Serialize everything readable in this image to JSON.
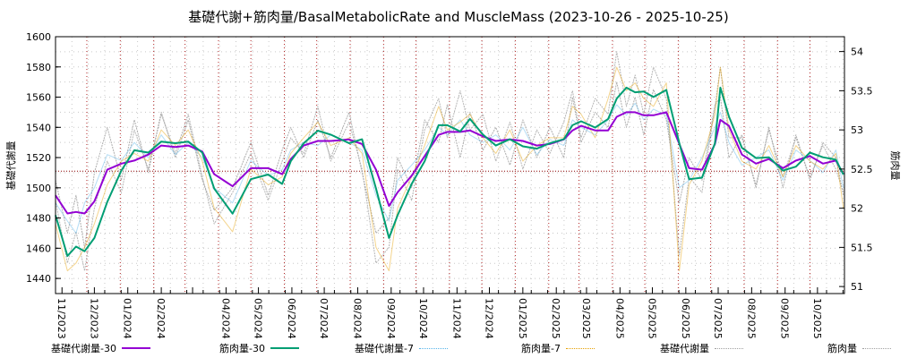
{
  "chart_data": {
    "type": "line",
    "title": "基礎代謝+筋肉量/BasalMetabolicRate and MuscleMass (2023-10-26 - 2025-10-25)",
    "start_date": "2023-10-26",
    "end_date": "2025-10-25",
    "ylabel": "基礎代謝量",
    "y2label": "筋肉量",
    "ylim": [
      1430,
      1600
    ],
    "y2lim": [
      50.91,
      54.19
    ],
    "yticks": [
      1440,
      1460,
      1480,
      1500,
      1520,
      1540,
      1560,
      1580,
      1600
    ],
    "y2ticks": [
      51,
      51.5,
      52,
      52.5,
      53,
      53.5,
      54
    ],
    "reference_line": 1511,
    "xticks": [
      "11/2023",
      "12/2023",
      "01/2024",
      "02/2024",
      "04/2024",
      "05/2024",
      "06/2024",
      "07/2024",
      "08/2024",
      "09/2024",
      "10/2024",
      "11/2024",
      "12/2024",
      "01/2025",
      "02/2025",
      "03/2025",
      "04/2025",
      "05/2025",
      "06/2025",
      "07/2025",
      "08/2025",
      "09/2025",
      "10/2025"
    ],
    "grid": true,
    "legend_position": "bottom",
    "x_days": [
      0,
      11,
      19,
      27,
      36,
      48,
      61,
      73,
      86,
      98,
      111,
      123,
      136,
      147,
      164,
      181,
      197,
      210,
      218,
      230,
      243,
      255,
      272,
      284,
      297,
      309,
      317,
      330,
      342,
      355,
      363,
      375,
      384,
      396,
      408,
      421,
      433,
      446,
      458,
      471,
      479,
      487,
      500,
      512,
      520,
      529,
      537,
      545,
      554,
      566,
      578,
      587,
      599,
      611,
      616,
      624,
      636,
      649,
      661,
      674,
      686,
      699,
      711,
      723,
      730
    ],
    "series": [
      {
        "name": "基礎代謝量",
        "axis": "left",
        "color": "#a0a0a0",
        "style": "raw",
        "values": [
          1505,
          1470,
          1495,
          1460,
          1510,
          1540,
          1505,
          1545,
          1510,
          1550,
          1520,
          1545,
          1505,
          1485,
          1500,
          1530,
          1495,
          1525,
          1540,
          1520,
          1545,
          1520,
          1550,
          1510,
          1470,
          1480,
          1520,
          1500,
          1545,
          1530,
          1555,
          1520,
          1550,
          1525,
          1540,
          1515,
          1545,
          1520,
          1540,
          1520,
          1560,
          1530,
          1550,
          1540,
          1570,
          1540,
          1560,
          1535,
          1565,
          1545,
          1490,
          1520,
          1505,
          1555,
          1560,
          1520,
          1535,
          1500,
          1540,
          1500,
          1535,
          1505,
          1530,
          1520,
          1495
        ]
      },
      {
        "name": "筋肉量",
        "axis": "right",
        "color": "#a8a8a8",
        "style": "raw",
        "values": [
          52.1,
          51.3,
          51.7,
          51.2,
          52.0,
          52.6,
          52.2,
          53.0,
          52.5,
          53.2,
          52.7,
          53.2,
          52.4,
          51.8,
          52.2,
          52.7,
          52.1,
          52.6,
          52.9,
          52.7,
          53.3,
          52.6,
          53.1,
          52.5,
          51.3,
          51.5,
          52.5,
          52.1,
          53.0,
          53.4,
          52.9,
          53.5,
          53.0,
          53.2,
          52.6,
          53.1,
          52.5,
          53.0,
          52.7,
          53.1,
          53.5,
          52.9,
          53.4,
          53.2,
          54.0,
          53.3,
          53.7,
          53.2,
          53.8,
          53.4,
          51.4,
          52.4,
          52.2,
          53.3,
          53.8,
          52.9,
          52.9,
          52.3,
          53.0,
          52.4,
          52.9,
          52.4,
          52.8,
          52.5,
          52.2
        ]
      },
      {
        "name": "基礎代謝量-7",
        "axis": "left",
        "color": "#56b4e9",
        "style": "ma7",
        "values": [
          1490,
          1478,
          1470,
          1490,
          1500,
          1522,
          1518,
          1530,
          1520,
          1535,
          1522,
          1530,
          1520,
          1500,
          1490,
          1518,
          1508,
          1512,
          1525,
          1530,
          1528,
          1535,
          1530,
          1525,
          1495,
          1478,
          1505,
          1515,
          1525,
          1540,
          1535,
          1545,
          1535,
          1530,
          1535,
          1525,
          1540,
          1522,
          1532,
          1528,
          1545,
          1540,
          1535,
          1545,
          1555,
          1548,
          1556,
          1545,
          1552,
          1548,
          1500,
          1505,
          1520,
          1540,
          1550,
          1530,
          1515,
          1520,
          1525,
          1505,
          1525,
          1518,
          1510,
          1525,
          1500
        ]
      },
      {
        "name": "筋肉量-7",
        "axis": "right",
        "color": "#e69f00",
        "style": "ma7",
        "values": [
          51.8,
          51.2,
          51.3,
          51.5,
          51.8,
          52.3,
          52.6,
          52.7,
          52.6,
          53.0,
          52.8,
          53.0,
          52.6,
          52.0,
          51.7,
          52.5,
          52.3,
          52.4,
          52.7,
          52.9,
          53.1,
          52.8,
          52.9,
          52.7,
          51.5,
          51.2,
          52.0,
          52.4,
          52.8,
          53.3,
          53.0,
          53.1,
          53.2,
          52.9,
          52.7,
          53.0,
          52.6,
          52.8,
          52.9,
          52.9,
          53.3,
          53.2,
          52.9,
          53.4,
          53.8,
          53.5,
          53.6,
          53.4,
          53.3,
          53.6,
          51.2,
          52.3,
          52.6,
          53.2,
          53.8,
          53.0,
          52.6,
          52.5,
          52.8,
          52.4,
          52.8,
          52.6,
          52.5,
          52.7,
          52.0
        ]
      },
      {
        "name": "基礎代謝量-30",
        "axis": "left",
        "color": "#9400d3",
        "style": "ma30",
        "values": [
          1495,
          1483,
          1484,
          1483,
          1491,
          1512,
          1516,
          1518,
          1522,
          1528,
          1527,
          1528,
          1524,
          1509,
          1501,
          1513,
          1513,
          1509,
          1519,
          1528,
          1531,
          1531,
          1532,
          1529,
          1512,
          1488,
          1497,
          1508,
          1521,
          1535,
          1537,
          1537,
          1538,
          1534,
          1531,
          1532,
          1531,
          1528,
          1529,
          1532,
          1538,
          1541,
          1538,
          1538,
          1547,
          1550,
          1550,
          1548,
          1548,
          1550,
          1529,
          1513,
          1512,
          1529,
          1545,
          1541,
          1522,
          1516,
          1519,
          1513,
          1518,
          1521,
          1516,
          1518,
          1509
        ]
      },
      {
        "name": "筋肉量-30",
        "axis": "right",
        "color": "#009e73",
        "style": "ma30",
        "values": [
          51.91,
          51.39,
          51.51,
          51.45,
          51.62,
          52.08,
          52.48,
          52.74,
          52.71,
          52.85,
          52.83,
          52.85,
          52.71,
          52.25,
          51.93,
          52.37,
          52.43,
          52.31,
          52.6,
          52.83,
          52.99,
          52.94,
          52.83,
          52.88,
          52.25,
          51.62,
          51.91,
          52.31,
          52.6,
          53.06,
          53.06,
          52.98,
          53.14,
          52.94,
          52.8,
          52.88,
          52.79,
          52.76,
          52.83,
          52.88,
          53.06,
          53.11,
          53.03,
          53.14,
          53.4,
          53.54,
          53.48,
          53.49,
          53.42,
          53.51,
          52.83,
          52.37,
          52.39,
          52.83,
          53.54,
          53.17,
          52.77,
          52.64,
          52.65,
          52.48,
          52.53,
          52.71,
          52.65,
          52.62,
          52.43
        ]
      }
    ],
    "legend": [
      "基礎代謝量-30",
      "筋肉量-30",
      "基礎代謝量-7",
      "筋肉量-7",
      "基礎代謝量",
      "筋肉量"
    ]
  }
}
